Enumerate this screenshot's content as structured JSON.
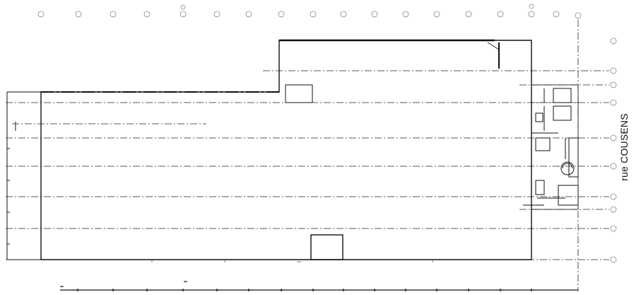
{
  "plan": {
    "street_label": "rue COUSENS"
  }
}
